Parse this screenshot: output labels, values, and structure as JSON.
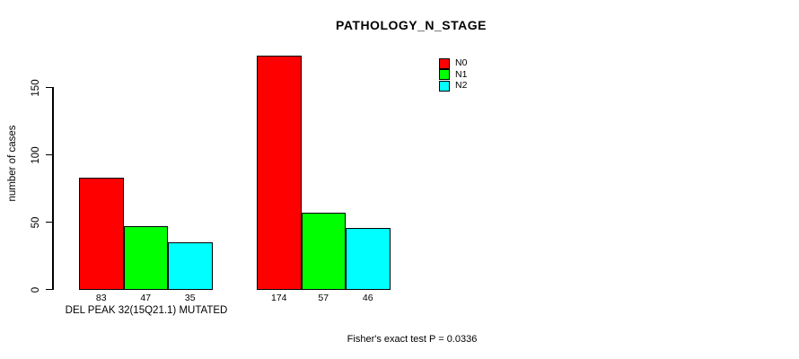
{
  "chart_data": {
    "type": "bar",
    "title": "PATHOLOGY_N_STAGE",
    "ylabel": "number of cases",
    "xlabel": "DEL PEAK 32(15Q21.1) MUTATED",
    "annotation": "Fisher's exact test P = 0.0336",
    "yticks": [
      0,
      50,
      100,
      150
    ],
    "ylim": [
      0,
      175
    ],
    "grid": false,
    "legend_position": "top-right-inside",
    "legend": [
      {
        "label": "N0",
        "color": "#ff0000"
      },
      {
        "label": "N1",
        "color": "#00ff00"
      },
      {
        "label": "N2",
        "color": "#00ffff"
      }
    ],
    "groups": [
      {
        "values": [
          83,
          47,
          35
        ]
      },
      {
        "values": [
          174,
          57,
          46
        ]
      }
    ],
    "colors": {
      "axis": "#000000",
      "background": "#ffffff",
      "text": "#000000"
    }
  }
}
